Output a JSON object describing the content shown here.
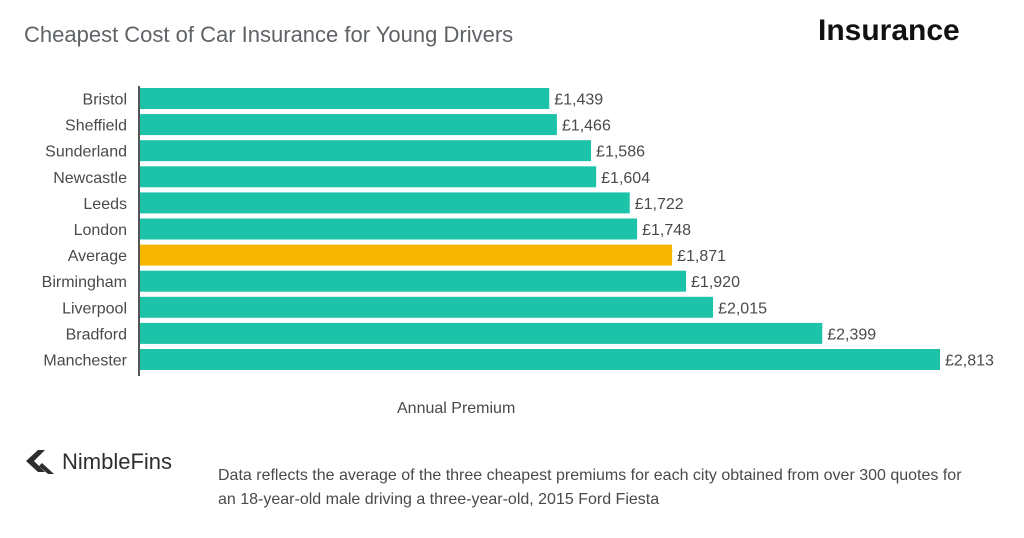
{
  "header": {
    "title": "Cheapest Cost of Car Insurance for Young Drivers",
    "badge": "Insurance"
  },
  "colors": {
    "bar": "#1cc3a9",
    "highlight": "#f7b500",
    "text": "#4a4a4a",
    "axis": "#555555"
  },
  "chart_data": {
    "type": "bar",
    "orientation": "horizontal",
    "title": "Cheapest Cost of Car Insurance for Young Drivers",
    "xlabel": "Annual Premium",
    "ylabel": "",
    "categories": [
      "Bristol",
      "Sheffield",
      "Sunderland",
      "Newcastle",
      "Leeds",
      "London",
      "Average",
      "Birmingham",
      "Liverpool",
      "Bradford",
      "Manchester"
    ],
    "values": [
      1439,
      1466,
      1586,
      1604,
      1722,
      1748,
      1871,
      1920,
      2015,
      2399,
      2813
    ],
    "value_labels": [
      "£1,439",
      "£1,466",
      "£1,586",
      "£1,604",
      "£1,722",
      "£1,748",
      "£1,871",
      "£1,920",
      "£2,015",
      "£2,399",
      "£2,813"
    ],
    "highlight_category": "Average",
    "xlim": [
      0,
      2813
    ],
    "grid": false
  },
  "footer": {
    "brand": "NimbleFins",
    "brand_icon": "nimblefins-chevron-icon",
    "note": "Data reflects the average of the three cheapest premiums for each city obtained from over 300 quotes for an 18-year-old male driving a three-year-old, 2015 Ford Fiesta"
  }
}
